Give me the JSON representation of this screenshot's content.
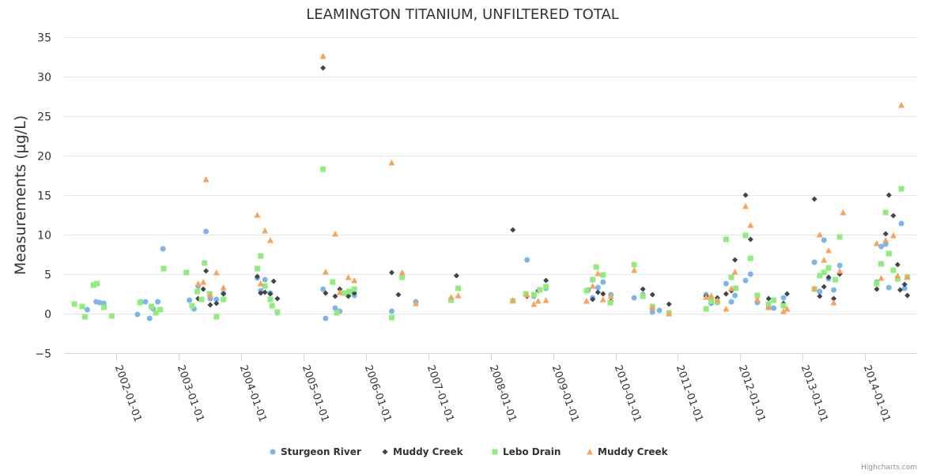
{
  "chart_data": {
    "type": "scatter",
    "title": "LEAMINGTON TITANIUM, UNFILTERED TOTAL",
    "xlabel": "",
    "ylabel": "Measurements (µg/L)",
    "ylim": [
      -5,
      35
    ],
    "yticks": [
      -5,
      0,
      5,
      10,
      15,
      20,
      25,
      30,
      35
    ],
    "xlim": [
      "2001-03-01",
      "2014-11-01"
    ],
    "xticks": [
      "2002-01-01",
      "2003-01-01",
      "2004-01-01",
      "2005-01-01",
      "2006-01-01",
      "2007-01-01",
      "2008-01-01",
      "2009-01-01",
      "2010-01-01",
      "2011-01-01",
      "2012-01-01",
      "2013-01-01",
      "2014-01-01"
    ],
    "grid": true,
    "legend_position": "bottom-center",
    "credits": "Highcharts.com",
    "series": [
      {
        "name": "Sturgeon River",
        "marker": "circle",
        "color": "#7cb5ec",
        "points": [
          [
            "2001-07-15",
            0.5
          ],
          [
            "2001-09-05",
            1.5
          ],
          [
            "2001-09-25",
            1.4
          ],
          [
            "2001-10-20",
            1.3
          ],
          [
            "2002-05-05",
            -0.1
          ],
          [
            "2002-05-25",
            1.5
          ],
          [
            "2002-06-20",
            1.5
          ],
          [
            "2002-07-15",
            -0.6
          ],
          [
            "2002-08-05",
            0.6
          ],
          [
            "2002-09-01",
            1.5
          ],
          [
            "2002-10-01",
            8.2
          ],
          [
            "2003-03-05",
            1.7
          ],
          [
            "2003-04-01",
            0.6
          ],
          [
            "2003-04-25",
            3.5
          ],
          [
            "2003-06-10",
            10.4
          ],
          [
            "2003-07-05",
            1.9
          ],
          [
            "2003-08-10",
            1.8
          ],
          [
            "2003-09-20",
            2.6
          ],
          [
            "2004-04-05",
            4.5
          ],
          [
            "2004-04-25",
            2.9
          ],
          [
            "2004-05-20",
            4.3
          ],
          [
            "2004-06-20",
            2.6
          ],
          [
            "2004-08-01",
            0.1
          ],
          [
            "2005-04-25",
            3.1
          ],
          [
            "2005-05-10",
            -0.6
          ],
          [
            "2005-07-05",
            0.7
          ],
          [
            "2005-08-01",
            0.3
          ],
          [
            "2005-09-20",
            2.4
          ],
          [
            "2005-10-25",
            2.3
          ],
          [
            "2006-06-01",
            0.3
          ],
          [
            "2006-08-01",
            4.8
          ],
          [
            "2006-10-20",
            1.5
          ],
          [
            "2008-08-01",
            6.8
          ],
          [
            "2008-09-10",
            2.2
          ],
          [
            "2008-11-20",
            3.2
          ],
          [
            "2009-07-25",
            3.0
          ],
          [
            "2009-08-20",
            2.0
          ],
          [
            "2009-09-20",
            3.3
          ],
          [
            "2009-10-20",
            4.0
          ],
          [
            "2009-12-05",
            2.4
          ],
          [
            "2010-04-20",
            2.0
          ],
          [
            "2010-06-10",
            2.4
          ],
          [
            "2010-08-05",
            0.2
          ],
          [
            "2010-09-15",
            0.4
          ],
          [
            "2011-06-15",
            2.4
          ],
          [
            "2011-07-15",
            1.3
          ],
          [
            "2011-08-20",
            1.4
          ],
          [
            "2011-10-10",
            3.8
          ],
          [
            "2011-11-10",
            1.5
          ],
          [
            "2011-12-01",
            2.3
          ],
          [
            "2012-02-01",
            4.2
          ],
          [
            "2012-03-01",
            5.0
          ],
          [
            "2012-04-10",
            1.4
          ],
          [
            "2012-06-15",
            0.8
          ],
          [
            "2012-07-15",
            0.7
          ],
          [
            "2012-09-10",
            2.0
          ],
          [
            "2013-03-10",
            6.5
          ],
          [
            "2013-04-10",
            2.8
          ],
          [
            "2013-05-05",
            9.3
          ],
          [
            "2013-06-01",
            4.4
          ],
          [
            "2013-07-01",
            3.0
          ],
          [
            "2013-08-05",
            6.1
          ],
          [
            "2014-03-10",
            4.0
          ],
          [
            "2014-04-05",
            8.5
          ],
          [
            "2014-05-01",
            8.8
          ],
          [
            "2014-05-20",
            3.3
          ],
          [
            "2014-08-01",
            11.4
          ],
          [
            "2014-08-20",
            3.2
          ]
        ]
      },
      {
        "name": "Muddy Creek",
        "marker": "diamond",
        "color": "#434348",
        "points": [
          [
            "2003-04-25",
            1.9
          ],
          [
            "2003-05-25",
            3.1
          ],
          [
            "2003-06-10",
            5.4
          ],
          [
            "2003-07-05",
            1.1
          ],
          [
            "2003-08-10",
            1.3
          ],
          [
            "2003-09-20",
            2.5
          ],
          [
            "2004-04-05",
            4.7
          ],
          [
            "2004-04-25",
            2.6
          ],
          [
            "2004-05-20",
            2.7
          ],
          [
            "2004-06-20",
            2.5
          ],
          [
            "2004-07-10",
            4.1
          ],
          [
            "2004-08-01",
            1.9
          ],
          [
            "2005-04-25",
            31.1
          ],
          [
            "2005-05-10",
            2.6
          ],
          [
            "2005-07-05",
            2.2
          ],
          [
            "2005-08-01",
            3.1
          ],
          [
            "2005-09-20",
            2.2
          ],
          [
            "2005-10-25",
            2.6
          ],
          [
            "2006-06-01",
            5.2
          ],
          [
            "2006-07-10",
            2.4
          ],
          [
            "2007-06-15",
            4.8
          ],
          [
            "2008-05-10",
            10.6
          ],
          [
            "2008-08-01",
            2.2
          ],
          [
            "2008-10-05",
            2.9
          ],
          [
            "2008-11-20",
            4.2
          ],
          [
            "2009-08-20",
            1.8
          ],
          [
            "2009-09-20",
            2.7
          ],
          [
            "2009-10-20",
            2.5
          ],
          [
            "2009-12-05",
            1.6
          ],
          [
            "2010-06-10",
            3.1
          ],
          [
            "2010-08-05",
            2.4
          ],
          [
            "2010-11-10",
            1.2
          ],
          [
            "2011-06-15",
            2.2
          ],
          [
            "2011-08-20",
            2.0
          ],
          [
            "2011-10-10",
            2.5
          ],
          [
            "2011-11-10",
            2.9
          ],
          [
            "2011-12-01",
            6.8
          ],
          [
            "2012-02-01",
            15.0
          ],
          [
            "2012-03-01",
            9.4
          ],
          [
            "2012-06-15",
            1.9
          ],
          [
            "2012-09-10",
            1.3
          ],
          [
            "2012-10-01",
            2.5
          ],
          [
            "2013-03-10",
            14.5
          ],
          [
            "2013-04-10",
            2.2
          ],
          [
            "2013-05-05",
            3.4
          ],
          [
            "2013-06-01",
            4.6
          ],
          [
            "2013-07-01",
            1.9
          ],
          [
            "2013-08-05",
            5.0
          ],
          [
            "2014-03-10",
            3.1
          ],
          [
            "2014-04-05",
            6.3
          ],
          [
            "2014-05-01",
            10.1
          ],
          [
            "2014-05-20",
            15.0
          ],
          [
            "2014-06-15",
            12.4
          ],
          [
            "2014-07-10",
            6.2
          ],
          [
            "2014-07-25",
            3.0
          ],
          [
            "2014-08-20",
            3.7
          ],
          [
            "2014-09-05",
            2.3
          ]
        ]
      },
      {
        "name": "Lebo Drain",
        "marker": "square",
        "color": "#90ed7d",
        "points": [
          [
            "2001-05-01",
            1.2
          ],
          [
            "2001-06-15",
            0.9
          ],
          [
            "2001-07-01",
            -0.4
          ],
          [
            "2001-08-20",
            3.6
          ],
          [
            "2001-09-10",
            3.8
          ],
          [
            "2001-10-20",
            0.8
          ],
          [
            "2001-12-05",
            -0.3
          ],
          [
            "2002-05-20",
            1.4
          ],
          [
            "2002-07-25",
            0.9
          ],
          [
            "2002-08-20",
            0.1
          ],
          [
            "2002-09-15",
            0.5
          ],
          [
            "2002-10-05",
            5.7
          ],
          [
            "2003-02-15",
            5.2
          ],
          [
            "2003-03-20",
            1.0
          ],
          [
            "2003-04-20",
            2.8
          ],
          [
            "2003-05-15",
            1.8
          ],
          [
            "2003-06-01",
            6.4
          ],
          [
            "2003-07-01",
            2.5
          ],
          [
            "2003-08-10",
            -0.4
          ],
          [
            "2003-09-20",
            1.8
          ],
          [
            "2004-04-05",
            5.7
          ],
          [
            "2004-04-25",
            7.3
          ],
          [
            "2004-05-20",
            3.5
          ],
          [
            "2004-06-20",
            1.8
          ],
          [
            "2004-07-01",
            1.0
          ],
          [
            "2004-08-01",
            0.2
          ],
          [
            "2005-04-25",
            18.3
          ],
          [
            "2005-06-20",
            4.0
          ],
          [
            "2005-07-15",
            0.1
          ],
          [
            "2005-08-25",
            2.6
          ],
          [
            "2005-09-25",
            2.8
          ],
          [
            "2005-10-25",
            3.1
          ],
          [
            "2006-06-01",
            -0.5
          ],
          [
            "2006-08-01",
            4.6
          ],
          [
            "2007-05-15",
            1.7
          ],
          [
            "2007-06-25",
            3.2
          ],
          [
            "2008-05-10",
            1.6
          ],
          [
            "2008-07-25",
            2.5
          ],
          [
            "2008-09-10",
            2.4
          ],
          [
            "2008-10-15",
            3.0
          ],
          [
            "2008-11-20",
            3.4
          ],
          [
            "2009-07-15",
            2.9
          ],
          [
            "2009-08-20",
            4.3
          ],
          [
            "2009-09-10",
            5.9
          ],
          [
            "2009-10-20",
            4.9
          ],
          [
            "2009-12-01",
            1.4
          ],
          [
            "2010-04-20",
            6.2
          ],
          [
            "2010-06-10",
            2.2
          ],
          [
            "2010-08-05",
            0.9
          ],
          [
            "2010-11-10",
            0.1
          ],
          [
            "2011-06-15",
            0.6
          ],
          [
            "2011-07-15",
            1.6
          ],
          [
            "2011-08-20",
            1.5
          ],
          [
            "2011-10-10",
            9.4
          ],
          [
            "2011-11-10",
            4.6
          ],
          [
            "2011-12-05",
            3.2
          ],
          [
            "2012-02-01",
            9.9
          ],
          [
            "2012-03-01",
            7.0
          ],
          [
            "2012-04-10",
            2.3
          ],
          [
            "2012-06-15",
            1.2
          ],
          [
            "2012-07-15",
            1.7
          ],
          [
            "2012-09-10",
            1.0
          ],
          [
            "2013-03-10",
            3.1
          ],
          [
            "2013-04-10",
            4.8
          ],
          [
            "2013-05-05",
            5.2
          ],
          [
            "2013-06-01",
            5.8
          ],
          [
            "2013-07-10",
            4.3
          ],
          [
            "2013-08-05",
            9.7
          ],
          [
            "2014-03-10",
            3.8
          ],
          [
            "2014-04-05",
            6.3
          ],
          [
            "2014-05-01",
            12.8
          ],
          [
            "2014-05-20",
            7.6
          ],
          [
            "2014-06-15",
            5.5
          ],
          [
            "2014-07-10",
            4.4
          ],
          [
            "2014-08-01",
            15.8
          ],
          [
            "2014-09-05",
            4.6
          ]
        ]
      },
      {
        "name": "Muddy Creek",
        "marker": "triangle",
        "color": "#f7a35c",
        "points": [
          [
            "2003-04-25",
            3.8
          ],
          [
            "2003-05-25",
            4.0
          ],
          [
            "2003-06-10",
            17.0
          ],
          [
            "2003-07-05",
            2.4
          ],
          [
            "2003-08-10",
            5.2
          ],
          [
            "2003-09-20",
            3.3
          ],
          [
            "2004-04-05",
            12.5
          ],
          [
            "2004-04-25",
            3.8
          ],
          [
            "2004-05-20",
            10.5
          ],
          [
            "2004-06-20",
            9.3
          ],
          [
            "2005-04-25",
            32.6
          ],
          [
            "2005-05-10",
            5.3
          ],
          [
            "2005-07-05",
            10.1
          ],
          [
            "2005-08-01",
            2.7
          ],
          [
            "2005-09-20",
            4.6
          ],
          [
            "2005-10-25",
            4.2
          ],
          [
            "2006-06-01",
            19.1
          ],
          [
            "2006-08-01",
            5.2
          ],
          [
            "2006-10-20",
            1.3
          ],
          [
            "2007-05-15",
            2.1
          ],
          [
            "2007-06-25",
            2.3
          ],
          [
            "2008-05-10",
            1.7
          ],
          [
            "2008-08-01",
            2.4
          ],
          [
            "2008-09-10",
            1.2
          ],
          [
            "2008-10-05",
            1.6
          ],
          [
            "2008-11-20",
            1.7
          ],
          [
            "2009-07-15",
            1.6
          ],
          [
            "2009-08-20",
            3.5
          ],
          [
            "2009-09-20",
            5.1
          ],
          [
            "2009-10-20",
            1.8
          ],
          [
            "2009-12-05",
            2.2
          ],
          [
            "2010-04-20",
            5.5
          ],
          [
            "2010-08-05",
            0.8
          ],
          [
            "2010-11-10",
            0.0
          ],
          [
            "2011-06-15",
            2.1
          ],
          [
            "2011-07-15",
            2.3
          ],
          [
            "2011-08-20",
            1.7
          ],
          [
            "2011-10-10",
            0.6
          ],
          [
            "2011-11-10",
            3.2
          ],
          [
            "2011-12-01",
            5.3
          ],
          [
            "2012-02-01",
            13.6
          ],
          [
            "2012-03-01",
            11.2
          ],
          [
            "2012-04-10",
            1.8
          ],
          [
            "2012-06-15",
            0.8
          ],
          [
            "2012-09-10",
            0.3
          ],
          [
            "2012-10-01",
            0.6
          ],
          [
            "2013-03-10",
            3.2
          ],
          [
            "2013-04-10",
            10.0
          ],
          [
            "2013-05-05",
            6.8
          ],
          [
            "2013-06-01",
            8.0
          ],
          [
            "2013-07-01",
            1.4
          ],
          [
            "2013-08-05",
            5.4
          ],
          [
            "2013-08-25",
            12.8
          ],
          [
            "2014-03-10",
            8.9
          ],
          [
            "2014-04-05",
            4.5
          ],
          [
            "2014-05-01",
            9.3
          ],
          [
            "2014-06-15",
            9.9
          ],
          [
            "2014-07-10",
            4.8
          ],
          [
            "2014-08-01",
            26.4
          ],
          [
            "2014-09-05",
            4.7
          ]
        ]
      }
    ]
  }
}
